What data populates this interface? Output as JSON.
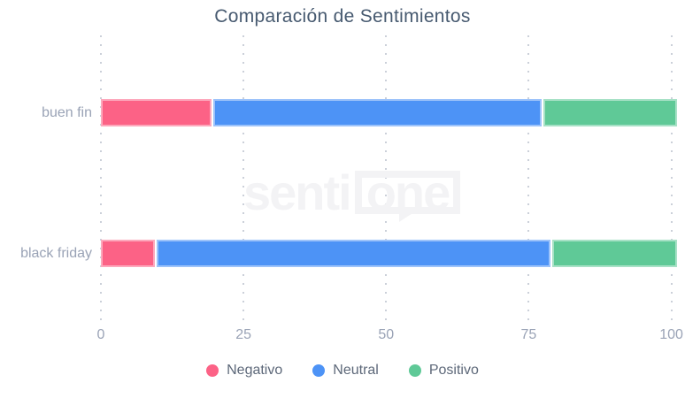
{
  "title": "Comparación de Sentimientos",
  "watermark": {
    "part1": "senti",
    "part2": "one"
  },
  "colors": {
    "negative": "#FC6286",
    "neutral": "#4D93F6",
    "positive": "#5FC997",
    "title_text": "#475A70",
    "axis_text": "#9AA3B6",
    "legend_text": "#5D6879",
    "gridline": "#CBD0D9",
    "watermark": "#F3F3F5",
    "background": "#FFFFFF"
  },
  "chart_data": {
    "type": "bar",
    "orientation": "horizontal",
    "stacked": true,
    "title": "Comparación de Sentimientos",
    "categories": [
      "buen fin",
      "black friday"
    ],
    "series": [
      {
        "name": "Negativo",
        "color": "#FC6286",
        "values": [
          19.5,
          9.5
        ]
      },
      {
        "name": "Neutral",
        "color": "#4D93F6",
        "values": [
          58.0,
          69.5
        ]
      },
      {
        "name": "Positivo",
        "color": "#5FC997",
        "values": [
          23.5,
          22.0
        ]
      }
    ],
    "x_ticks": [
      0,
      25,
      50,
      75,
      100
    ],
    "xlim": [
      0,
      101
    ],
    "grid": "dotted-vertical",
    "legend_position": "bottom",
    "xlabel": "",
    "ylabel": ""
  }
}
